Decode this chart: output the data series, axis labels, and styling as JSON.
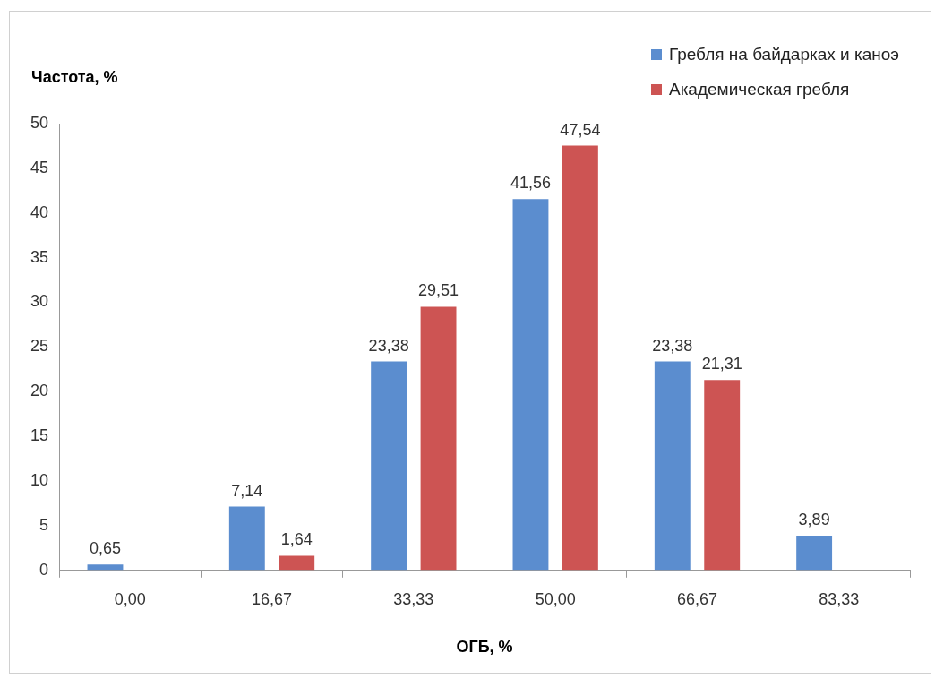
{
  "chart_data": {
    "type": "bar",
    "xlabel": "ОГБ, %",
    "ylabel": "Частота, %",
    "categories": [
      "0,00",
      "16,67",
      "33,33",
      "50,00",
      "66,67",
      "83,33"
    ],
    "series": [
      {
        "name": "Гребля на байдарках и каноэ",
        "color": "#5b8dcf",
        "values": [
          0.65,
          7.14,
          23.38,
          41.56,
          23.38,
          3.89
        ],
        "value_labels": [
          "0,65",
          "7,14",
          "23,38",
          "41,56",
          "23,38",
          "3,89"
        ]
      },
      {
        "name": "Академическая гребля",
        "color": "#cd5453",
        "values": [
          null,
          1.64,
          29.51,
          47.54,
          21.31,
          null
        ],
        "value_labels": [
          null,
          "1,64",
          "29,51",
          "47,54",
          "21,31",
          null
        ]
      }
    ],
    "ylim": [
      0,
      50
    ],
    "yticks": [
      0,
      5,
      10,
      15,
      20,
      25,
      30,
      35,
      40,
      45,
      50
    ],
    "grid": false,
    "legend": "top right"
  }
}
